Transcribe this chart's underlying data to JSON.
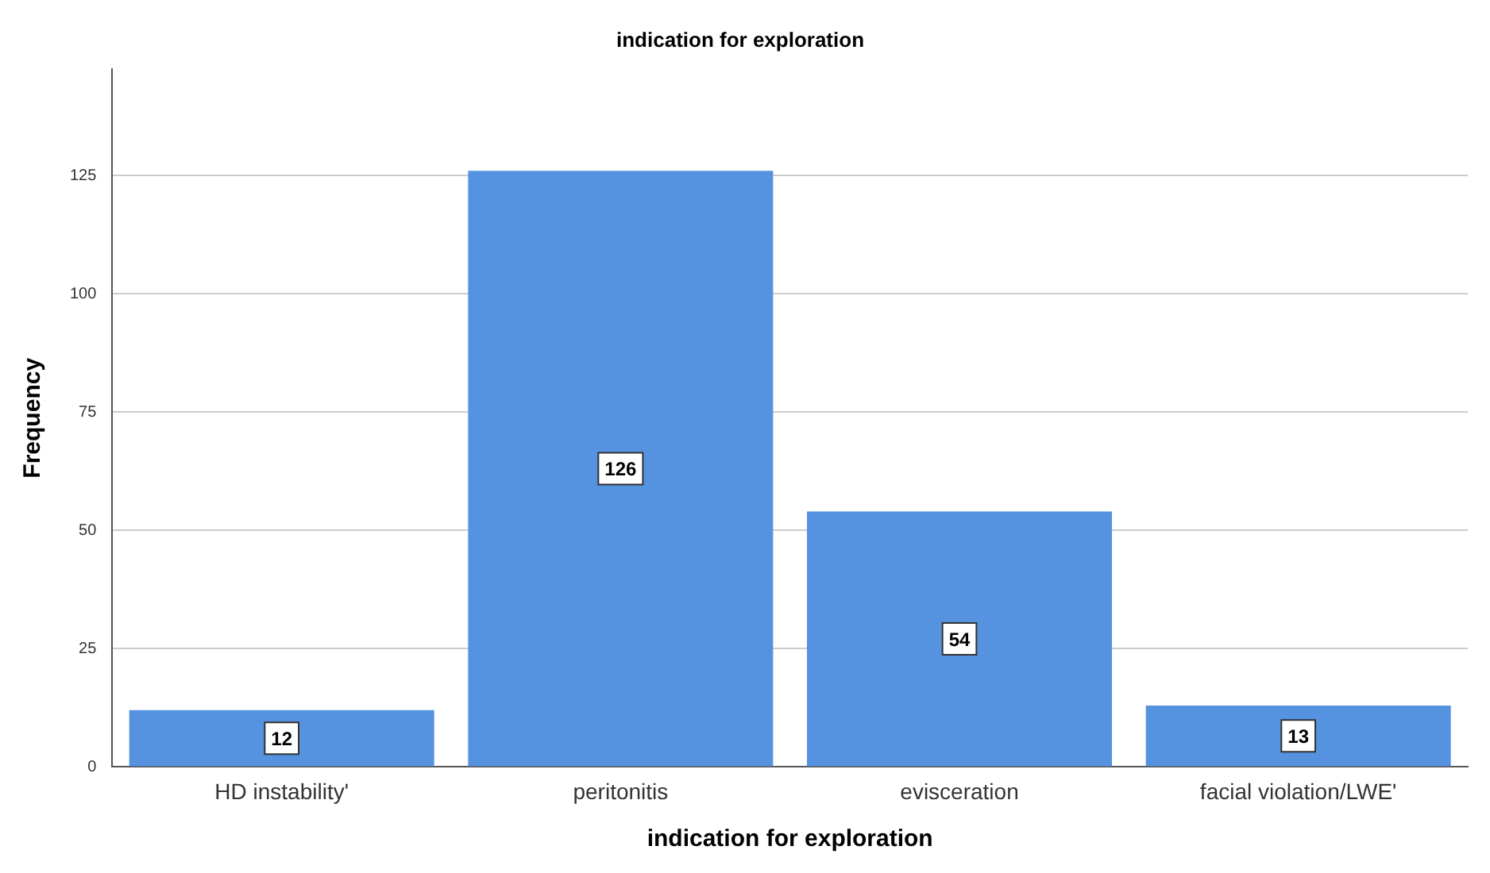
{
  "chart_data": {
    "type": "bar",
    "title": "indication for exploration",
    "xlabel": "indication for exploration",
    "ylabel": "Frequency",
    "categories": [
      "HD instability'",
      "peritonitis",
      "evisceration",
      "facial violation/LWE'"
    ],
    "values": [
      12,
      126,
      54,
      13
    ],
    "color": "#5592e0",
    "ylim": [
      0,
      147.5
    ],
    "yticks": [
      0,
      25,
      50,
      75,
      100,
      125
    ],
    "grid": "y",
    "data_labels": true
  }
}
